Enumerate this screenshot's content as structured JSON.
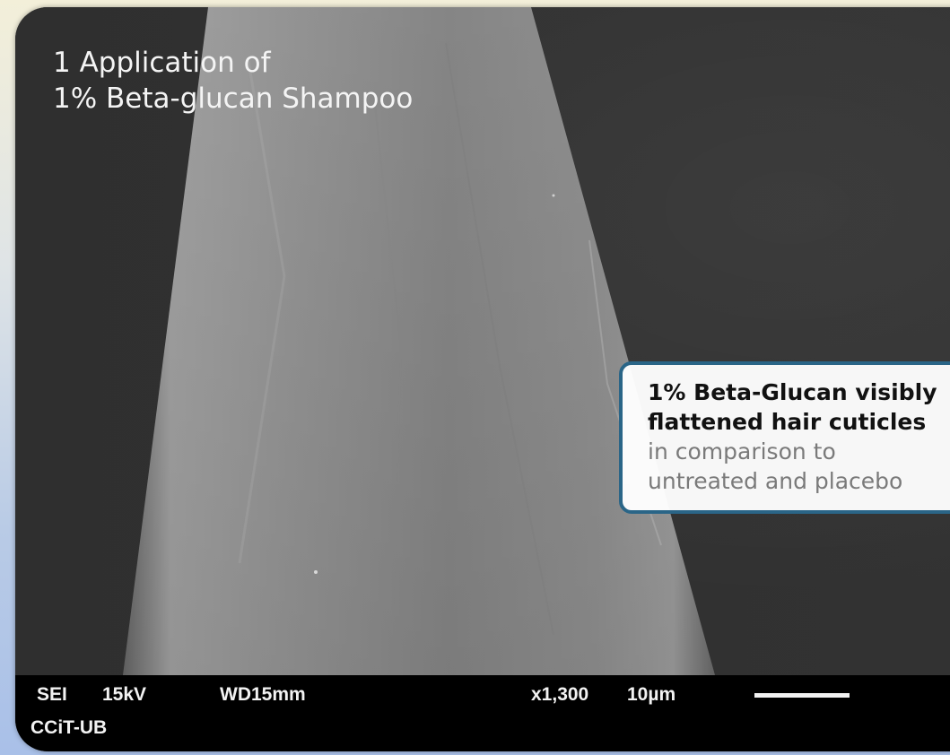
{
  "caption": {
    "line1": "1 Application of",
    "line2": "1% Beta-glucan Shampoo"
  },
  "callout": {
    "bold_line1": "1% Beta-Glucan visibly",
    "bold_line2": "flattened hair cuticles",
    "light_line1": "in comparison to",
    "light_line2": "untreated and placebo"
  },
  "sem_databar": {
    "mode": "SEI",
    "voltage": "15kV",
    "working_distance": "WD15mm",
    "magnification": "x1,300",
    "scale_label": "10µm",
    "facility": "CCiT-UB"
  },
  "colors": {
    "callout_border": "#2a6587",
    "databar_bg": "#000000",
    "hair_fiber": "#8e8e8e"
  }
}
